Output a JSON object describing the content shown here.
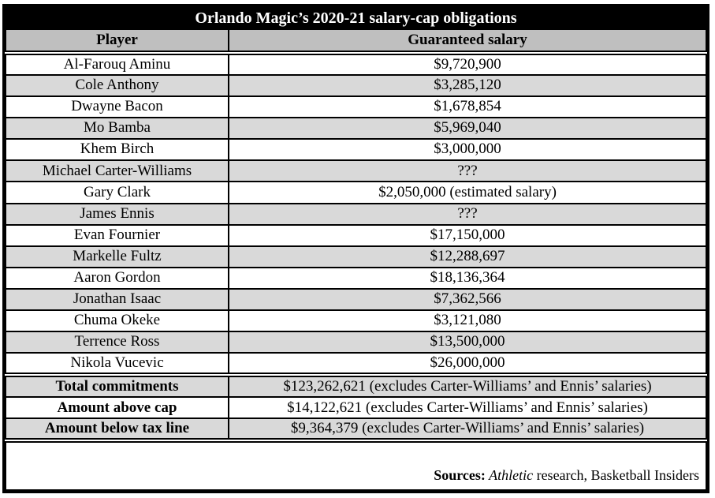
{
  "chart_data": {
    "type": "table",
    "title": "Orlando Magic’s 2020-21 salary-cap obligations",
    "columns": [
      "Player",
      "Guaranteed salary"
    ],
    "rows": [
      [
        "Al-Farouq Aminu",
        "$9,720,900"
      ],
      [
        "Cole Anthony",
        "$3,285,120"
      ],
      [
        "Dwayne Bacon",
        "$1,678,854"
      ],
      [
        "Mo Bamba",
        "$5,969,040"
      ],
      [
        "Khem Birch",
        "$3,000,000"
      ],
      [
        "Michael Carter-Williams",
        "???"
      ],
      [
        "Gary Clark",
        "$2,050,000 (estimated salary)"
      ],
      [
        "James Ennis",
        "???"
      ],
      [
        "Evan Fournier",
        "$17,150,000"
      ],
      [
        "Markelle Fultz",
        "$12,288,697"
      ],
      [
        "Aaron Gordon",
        "$18,136,364"
      ],
      [
        "Jonathan Isaac",
        "$7,362,566"
      ],
      [
        "Chuma Okeke",
        "$3,121,080"
      ],
      [
        "Terrence Ross",
        "$13,500,000"
      ],
      [
        "Nikola Vucevic",
        "$26,000,000"
      ]
    ],
    "summary_rows": [
      [
        "Total commitments",
        "$123,262,621 (excludes Carter-Williams’ and Ennis’ salaries)"
      ],
      [
        "Amount above cap",
        "$14,122,621 (excludes Carter-Williams’ and Ennis’ salaries)"
      ],
      [
        "Amount below tax line",
        "$9,364,379 (excludes Carter-Williams’ and Ennis’ salaries)"
      ]
    ],
    "source_note": "Sources: Athletic research, Basketball Insiders"
  },
  "table": {
    "title": "Orlando Magic’s 2020-21 salary-cap obligations",
    "header": {
      "player": "Player",
      "salary": "Guaranteed salary"
    },
    "players": [
      {
        "name": "Al-Farouq Aminu",
        "salary": "$9,720,900"
      },
      {
        "name": "Cole Anthony",
        "salary": "$3,285,120"
      },
      {
        "name": "Dwayne Bacon",
        "salary": "$1,678,854"
      },
      {
        "name": "Mo Bamba",
        "salary": "$5,969,040"
      },
      {
        "name": "Khem Birch",
        "salary": "$3,000,000"
      },
      {
        "name": "Michael Carter-Williams",
        "salary": "???"
      },
      {
        "name": "Gary Clark",
        "salary": "$2,050,000 (estimated salary)"
      },
      {
        "name": "James Ennis",
        "salary": "???"
      },
      {
        "name": "Evan Fournier",
        "salary": "$17,150,000"
      },
      {
        "name": "Markelle Fultz",
        "salary": "$12,288,697"
      },
      {
        "name": "Aaron Gordon",
        "salary": "$18,136,364"
      },
      {
        "name": "Jonathan Isaac",
        "salary": "$7,362,566"
      },
      {
        "name": "Chuma Okeke",
        "salary": "$3,121,080"
      },
      {
        "name": "Terrence Ross",
        "salary": "$13,500,000"
      },
      {
        "name": "Nikola Vucevic",
        "salary": "$26,000,000"
      }
    ],
    "summary": [
      {
        "label": "Total commitments",
        "value": "$123,262,621 (excludes Carter-Williams’ and Ennis’ salaries)"
      },
      {
        "label": "Amount above cap",
        "value": "$14,122,621 (excludes Carter-Williams’ and Ennis’ salaries)"
      },
      {
        "label": "Amount below tax line",
        "value": "$9,364,379 (excludes Carter-Williams’ and Ennis’ salaries)"
      }
    ],
    "sources": {
      "label": "Sources:",
      "publication": " Athletic",
      "rest": " research, Basketball Insiders"
    }
  },
  "colors": {
    "title_bg": "#000000",
    "title_fg": "#ffffff",
    "header_bg": "#bfbfbf",
    "row_alt_bg": "#d9d9d9",
    "border": "#000000"
  }
}
